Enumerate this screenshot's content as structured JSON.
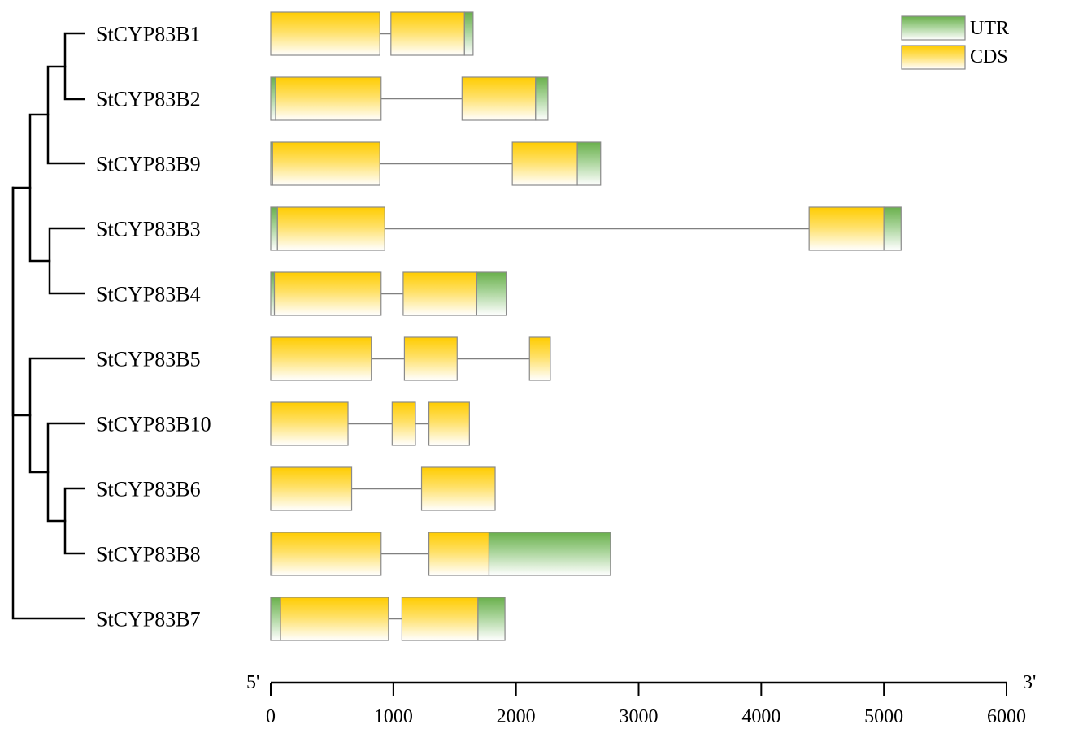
{
  "legend": {
    "utr_label": "UTR",
    "cds_label": "CDS",
    "utr_color": "#6ab04c",
    "cds_color": "#ffcc00"
  },
  "axis": {
    "start_label": "5'",
    "end_label": "3'",
    "min": 0,
    "max": 6000,
    "ticks": [
      "0",
      "1000",
      "2000",
      "3000",
      "4000",
      "5000",
      "6000"
    ]
  },
  "genes": [
    {
      "name": "StCYP83B1",
      "segments": [
        {
          "t": "cds",
          "s": 0,
          "e": 890
        },
        {
          "t": "cds",
          "s": 980,
          "e": 1580
        },
        {
          "t": "utr",
          "s": 1580,
          "e": 1650
        }
      ]
    },
    {
      "name": "StCYP83B2",
      "segments": [
        {
          "t": "utr",
          "s": 0,
          "e": 40
        },
        {
          "t": "cds",
          "s": 40,
          "e": 900
        },
        {
          "t": "cds",
          "s": 1560,
          "e": 2160
        },
        {
          "t": "utr",
          "s": 2160,
          "e": 2260
        }
      ]
    },
    {
      "name": "StCYP83B9",
      "segments": [
        {
          "t": "utr",
          "s": 0,
          "e": 15
        },
        {
          "t": "cds",
          "s": 15,
          "e": 890
        },
        {
          "t": "cds",
          "s": 1970,
          "e": 2500
        },
        {
          "t": "utr",
          "s": 2500,
          "e": 2690
        }
      ]
    },
    {
      "name": "StCYP83B3",
      "segments": [
        {
          "t": "utr",
          "s": 0,
          "e": 55
        },
        {
          "t": "cds",
          "s": 55,
          "e": 930
        },
        {
          "t": "cds",
          "s": 4390,
          "e": 5000
        },
        {
          "t": "utr",
          "s": 5000,
          "e": 5140
        }
      ]
    },
    {
      "name": "StCYP83B4",
      "segments": [
        {
          "t": "utr",
          "s": 0,
          "e": 30
        },
        {
          "t": "cds",
          "s": 30,
          "e": 900
        },
        {
          "t": "cds",
          "s": 1080,
          "e": 1680
        },
        {
          "t": "utr",
          "s": 1680,
          "e": 1920
        }
      ]
    },
    {
      "name": "StCYP83B5",
      "segments": [
        {
          "t": "cds",
          "s": 0,
          "e": 820
        },
        {
          "t": "cds",
          "s": 1090,
          "e": 1520
        },
        {
          "t": "cds",
          "s": 2110,
          "e": 2280
        }
      ]
    },
    {
      "name": "StCYP83B10",
      "segments": [
        {
          "t": "cds",
          "s": 0,
          "e": 630
        },
        {
          "t": "cds",
          "s": 990,
          "e": 1180
        },
        {
          "t": "cds",
          "s": 1290,
          "e": 1620
        }
      ]
    },
    {
      "name": "StCYP83B6",
      "segments": [
        {
          "t": "cds",
          "s": 0,
          "e": 660
        },
        {
          "t": "cds",
          "s": 1230,
          "e": 1830
        }
      ]
    },
    {
      "name": "StCYP83B8",
      "segments": [
        {
          "t": "utr",
          "s": 0,
          "e": 10
        },
        {
          "t": "cds",
          "s": 10,
          "e": 900
        },
        {
          "t": "cds",
          "s": 1290,
          "e": 1780
        },
        {
          "t": "utr",
          "s": 1780,
          "e": 2770
        }
      ]
    },
    {
      "name": "StCYP83B7",
      "segments": [
        {
          "t": "utr",
          "s": 0,
          "e": 80
        },
        {
          "t": "cds",
          "s": 80,
          "e": 960
        },
        {
          "t": "cds",
          "s": 1070,
          "e": 1690
        },
        {
          "t": "utr",
          "s": 1690,
          "e": 1910
        }
      ]
    }
  ]
}
